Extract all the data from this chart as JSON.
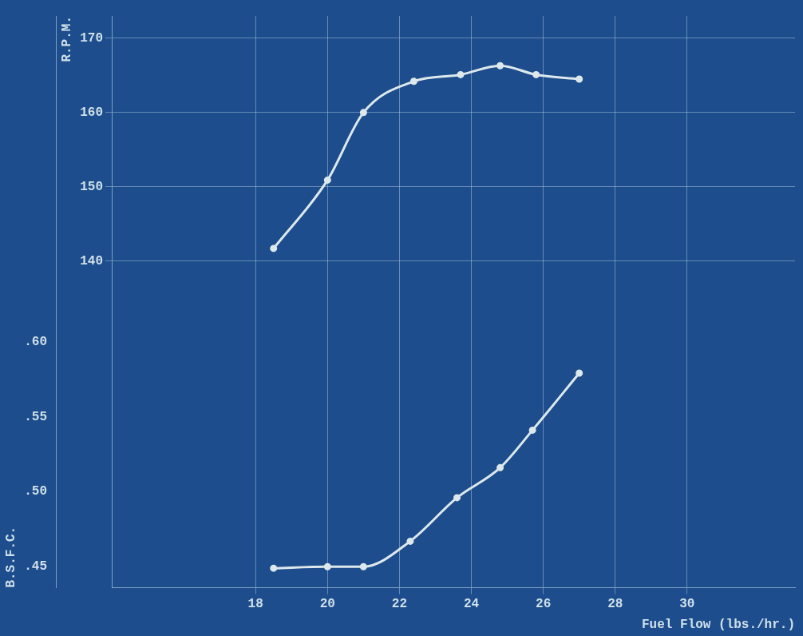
{
  "chart_data": {
    "type": "line",
    "xlabel": "Fuel Flow (lbs./hr.)",
    "ylabel": "R.P.M.",
    "y2label": "B.S.F.C.",
    "xlim": [
      14,
      33
    ],
    "xticks": [
      18,
      20,
      22,
      24,
      26,
      28,
      30
    ],
    "ylim": [
      96,
      173
    ],
    "yticks": [
      140,
      150,
      160,
      170
    ],
    "y2lim": [
      0.436,
      0.817
    ],
    "y2ticks": [
      {
        "value": 0.45,
        "label": ".45"
      },
      {
        "value": 0.5,
        "label": ".50"
      },
      {
        "value": 0.55,
        "label": ".55"
      },
      {
        "value": 0.6,
        "label": ".60"
      }
    ],
    "grid": true,
    "marker": "circle",
    "line_style": "solid",
    "series": [
      {
        "color": "#dce8ec",
        "x": [
          18.5,
          20.0,
          21.0,
          22.4,
          23.7,
          24.8,
          25.8,
          27.0
        ],
        "values": [
          141.7,
          150.9,
          160,
          164.2,
          165.1,
          166.3,
          165.1,
          164.5
        ]
      },
      {
        "color": "#dce8ec",
        "axis": "y2",
        "x": [
          18.5,
          20.0,
          21.0,
          22.3,
          23.6,
          24.8,
          25.7,
          27.0
        ],
        "values": [
          0.449,
          0.45,
          0.45,
          0.467,
          0.496,
          0.516,
          0.541,
          0.579
        ]
      }
    ]
  }
}
